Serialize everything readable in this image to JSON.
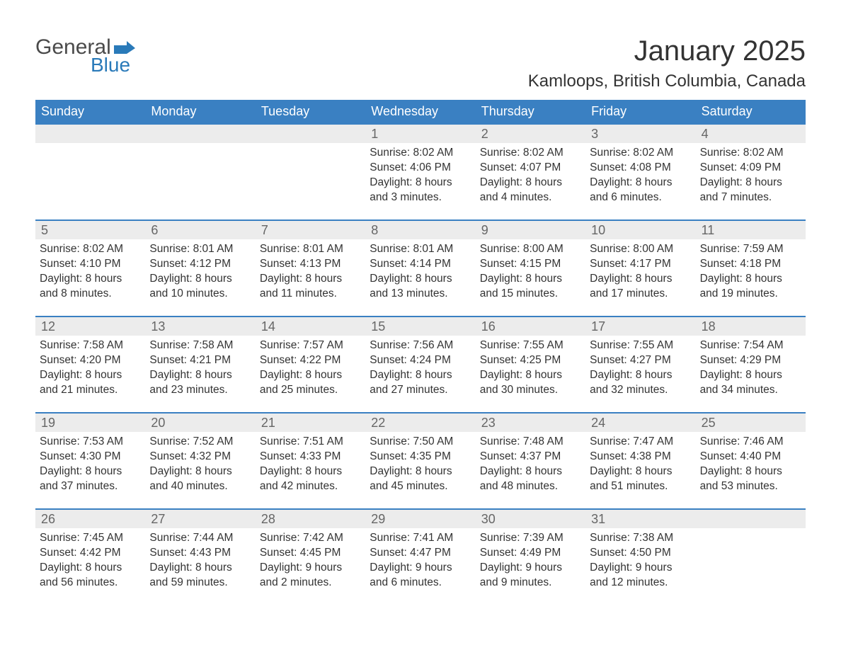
{
  "logo": {
    "text1": "General",
    "text2": "Blue",
    "flag_color": "#2a7ab9",
    "text1_color": "#4a4a4a"
  },
  "title": "January 2025",
  "location": "Kamloops, British Columbia, Canada",
  "colors": {
    "header_bg": "#3a80c2",
    "header_fg": "#ffffff",
    "daynum_bg": "#ececec",
    "daynum_fg": "#666666",
    "body_fg": "#333333",
    "rule": "#3a80c2",
    "page_bg": "#ffffff"
  },
  "day_names": [
    "Sunday",
    "Monday",
    "Tuesday",
    "Wednesday",
    "Thursday",
    "Friday",
    "Saturday"
  ],
  "weeks": [
    [
      null,
      null,
      null,
      {
        "n": "1",
        "sunrise": "8:02 AM",
        "sunset": "4:06 PM",
        "daylight": "8 hours and 3 minutes."
      },
      {
        "n": "2",
        "sunrise": "8:02 AM",
        "sunset": "4:07 PM",
        "daylight": "8 hours and 4 minutes."
      },
      {
        "n": "3",
        "sunrise": "8:02 AM",
        "sunset": "4:08 PM",
        "daylight": "8 hours and 6 minutes."
      },
      {
        "n": "4",
        "sunrise": "8:02 AM",
        "sunset": "4:09 PM",
        "daylight": "8 hours and 7 minutes."
      }
    ],
    [
      {
        "n": "5",
        "sunrise": "8:02 AM",
        "sunset": "4:10 PM",
        "daylight": "8 hours and 8 minutes."
      },
      {
        "n": "6",
        "sunrise": "8:01 AM",
        "sunset": "4:12 PM",
        "daylight": "8 hours and 10 minutes."
      },
      {
        "n": "7",
        "sunrise": "8:01 AM",
        "sunset": "4:13 PM",
        "daylight": "8 hours and 11 minutes."
      },
      {
        "n": "8",
        "sunrise": "8:01 AM",
        "sunset": "4:14 PM",
        "daylight": "8 hours and 13 minutes."
      },
      {
        "n": "9",
        "sunrise": "8:00 AM",
        "sunset": "4:15 PM",
        "daylight": "8 hours and 15 minutes."
      },
      {
        "n": "10",
        "sunrise": "8:00 AM",
        "sunset": "4:17 PM",
        "daylight": "8 hours and 17 minutes."
      },
      {
        "n": "11",
        "sunrise": "7:59 AM",
        "sunset": "4:18 PM",
        "daylight": "8 hours and 19 minutes."
      }
    ],
    [
      {
        "n": "12",
        "sunrise": "7:58 AM",
        "sunset": "4:20 PM",
        "daylight": "8 hours and 21 minutes."
      },
      {
        "n": "13",
        "sunrise": "7:58 AM",
        "sunset": "4:21 PM",
        "daylight": "8 hours and 23 minutes."
      },
      {
        "n": "14",
        "sunrise": "7:57 AM",
        "sunset": "4:22 PM",
        "daylight": "8 hours and 25 minutes."
      },
      {
        "n": "15",
        "sunrise": "7:56 AM",
        "sunset": "4:24 PM",
        "daylight": "8 hours and 27 minutes."
      },
      {
        "n": "16",
        "sunrise": "7:55 AM",
        "sunset": "4:25 PM",
        "daylight": "8 hours and 30 minutes."
      },
      {
        "n": "17",
        "sunrise": "7:55 AM",
        "sunset": "4:27 PM",
        "daylight": "8 hours and 32 minutes."
      },
      {
        "n": "18",
        "sunrise": "7:54 AM",
        "sunset": "4:29 PM",
        "daylight": "8 hours and 34 minutes."
      }
    ],
    [
      {
        "n": "19",
        "sunrise": "7:53 AM",
        "sunset": "4:30 PM",
        "daylight": "8 hours and 37 minutes."
      },
      {
        "n": "20",
        "sunrise": "7:52 AM",
        "sunset": "4:32 PM",
        "daylight": "8 hours and 40 minutes."
      },
      {
        "n": "21",
        "sunrise": "7:51 AM",
        "sunset": "4:33 PM",
        "daylight": "8 hours and 42 minutes."
      },
      {
        "n": "22",
        "sunrise": "7:50 AM",
        "sunset": "4:35 PM",
        "daylight": "8 hours and 45 minutes."
      },
      {
        "n": "23",
        "sunrise": "7:48 AM",
        "sunset": "4:37 PM",
        "daylight": "8 hours and 48 minutes."
      },
      {
        "n": "24",
        "sunrise": "7:47 AM",
        "sunset": "4:38 PM",
        "daylight": "8 hours and 51 minutes."
      },
      {
        "n": "25",
        "sunrise": "7:46 AM",
        "sunset": "4:40 PM",
        "daylight": "8 hours and 53 minutes."
      }
    ],
    [
      {
        "n": "26",
        "sunrise": "7:45 AM",
        "sunset": "4:42 PM",
        "daylight": "8 hours and 56 minutes."
      },
      {
        "n": "27",
        "sunrise": "7:44 AM",
        "sunset": "4:43 PM",
        "daylight": "8 hours and 59 minutes."
      },
      {
        "n": "28",
        "sunrise": "7:42 AM",
        "sunset": "4:45 PM",
        "daylight": "9 hours and 2 minutes."
      },
      {
        "n": "29",
        "sunrise": "7:41 AM",
        "sunset": "4:47 PM",
        "daylight": "9 hours and 6 minutes."
      },
      {
        "n": "30",
        "sunrise": "7:39 AM",
        "sunset": "4:49 PM",
        "daylight": "9 hours and 9 minutes."
      },
      {
        "n": "31",
        "sunrise": "7:38 AM",
        "sunset": "4:50 PM",
        "daylight": "9 hours and 12 minutes."
      },
      null
    ]
  ],
  "labels": {
    "sunrise": "Sunrise: ",
    "sunset": "Sunset: ",
    "daylight": "Daylight: "
  }
}
